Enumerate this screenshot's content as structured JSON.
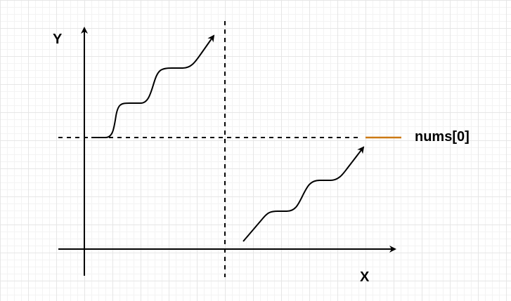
{
  "axes": {
    "y_label": "Y",
    "x_label": "X"
  },
  "annotation": {
    "label": "nums[0]",
    "marker_color": "#cc7a14"
  },
  "colors": {
    "ink": "#000000",
    "grid_major": "#e6e6e6",
    "grid_minor": "#f3f3f3"
  }
}
